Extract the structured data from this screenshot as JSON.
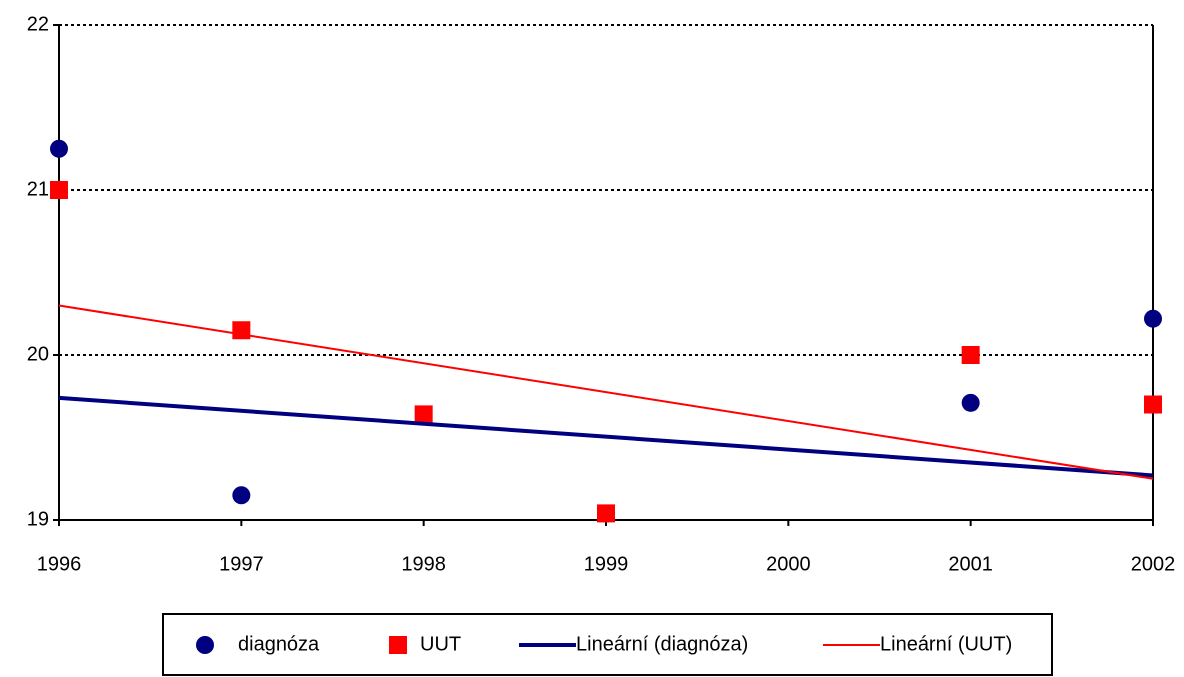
{
  "chart_data": {
    "type": "scatter",
    "xlim": [
      1996,
      2002
    ],
    "xticks": [
      1996,
      1997,
      1998,
      1999,
      2000,
      2001,
      2002
    ],
    "ylim": [
      19,
      22
    ],
    "yticks": [
      19,
      20,
      21,
      22
    ],
    "grid": true,
    "legend": "bottom",
    "series": [
      {
        "name": "diagnóza",
        "color": "#000080",
        "marker": "circle",
        "x": [
          1996,
          1997,
          2001,
          2002
        ],
        "values": [
          21.25,
          19.15,
          19.71,
          20.22
        ]
      },
      {
        "name": "UUT",
        "color": "#ff0000",
        "marker": "square",
        "x": [
          1996,
          1997,
          1998,
          1999,
          2001,
          2002
        ],
        "values": [
          21.0,
          20.15,
          19.64,
          19.04,
          20.0,
          19.7
        ]
      },
      {
        "name": "Lineární (diagnóza)",
        "color": "#000080",
        "marker": "line",
        "width": 4,
        "x": [
          1996,
          2002
        ],
        "values": [
          19.74,
          19.27
        ]
      },
      {
        "name": "Lineární (UUT)",
        "color": "#ff0000",
        "marker": "line",
        "width": 2,
        "x": [
          1996,
          2002
        ],
        "values": [
          20.3,
          19.25
        ]
      }
    ]
  }
}
